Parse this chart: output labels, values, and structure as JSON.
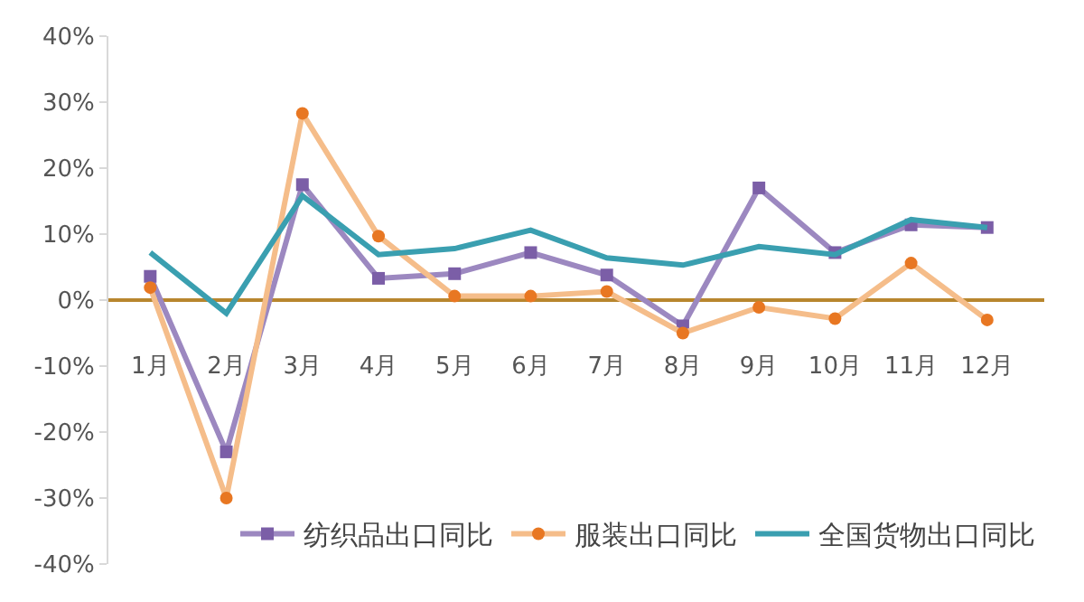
{
  "chart_data": {
    "type": "line",
    "categories": [
      "1月",
      "2月",
      "3月",
      "4月",
      "5月",
      "6月",
      "7月",
      "8月",
      "9月",
      "10月",
      "11月",
      "12月"
    ],
    "series": [
      {
        "name": "纺织品出口同比",
        "color": "#9c88c0",
        "marker": "square",
        "values": [
          3.6,
          -23,
          17.5,
          3.3,
          4,
          7.2,
          3.8,
          -3.9,
          17,
          7.2,
          11.4,
          11
        ]
      },
      {
        "name": "服装出口同比",
        "color": "#f5bd8a",
        "marker": "circle",
        "values": [
          1.9,
          -30,
          28.3,
          9.7,
          0.6,
          0.6,
          1.3,
          -5,
          -1.1,
          -2.8,
          5.6,
          -3
        ]
      },
      {
        "name": "全国货物出口同比",
        "color": "#3a9fb0",
        "marker": "none",
        "values": [
          7.2,
          -2,
          15.8,
          6.9,
          7.8,
          10.6,
          6.4,
          5.3,
          8.1,
          6.9,
          12.2,
          11
        ]
      }
    ],
    "ylim": [
      -40,
      40
    ],
    "yticks": [
      {
        "value": -40,
        "label": "-40%"
      },
      {
        "value": -30,
        "label": "-30%"
      },
      {
        "value": -20,
        "label": "-20%"
      },
      {
        "value": -10,
        "label": "-10%"
      },
      {
        "value": 0,
        "label": "0%"
      },
      {
        "value": 10,
        "label": "10%"
      },
      {
        "value": 20,
        "label": "20%"
      },
      {
        "value": 30,
        "label": "30%"
      },
      {
        "value": 40,
        "label": "40%"
      }
    ],
    "grid": false,
    "legend": "bottom right"
  }
}
